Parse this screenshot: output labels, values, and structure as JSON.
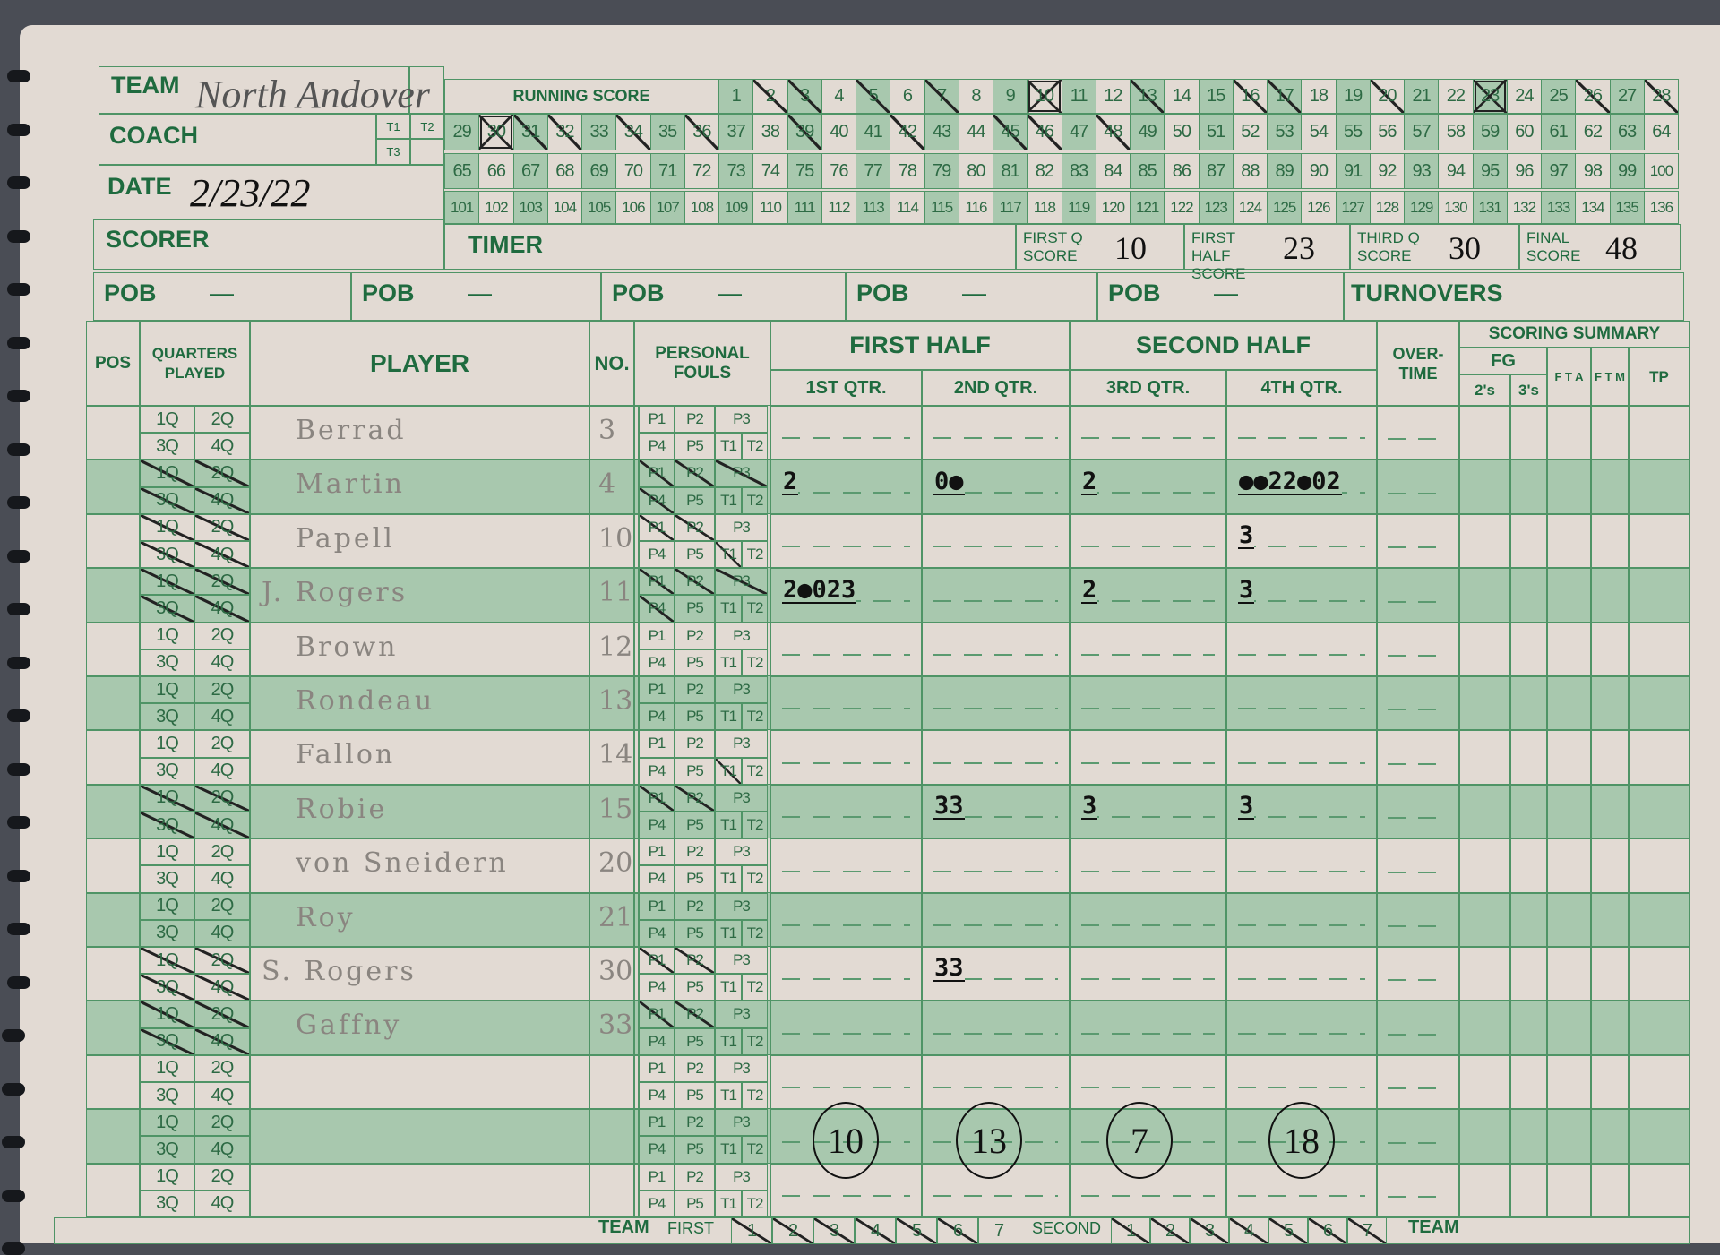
{
  "header": {
    "team_label": "TEAM",
    "team_value": "North Andover",
    "coach_label": "COACH",
    "t1": "T1",
    "t2": "T2",
    "t3": "T3",
    "date_label": "DATE",
    "date_value": "2/23/22",
    "scorer_label": "SCORER",
    "timer_label": "TIMER",
    "running_score_label": "RUNNING SCORE",
    "first_q_label": "FIRST Q SCORE",
    "first_q_value": "10",
    "first_half_label": "FIRST HALF SCORE",
    "first_half_value": "23",
    "third_q_label": "THIRD Q SCORE",
    "third_q_value": "30",
    "final_label": "FINAL SCORE",
    "final_value": "48"
  },
  "running_score": {
    "max": 136,
    "crossed": [
      2,
      3,
      5,
      7,
      13,
      16,
      17,
      20,
      26,
      28,
      31,
      32,
      34,
      36,
      39,
      42,
      45,
      46,
      48
    ],
    "boxed": [
      10,
      23,
      30
    ]
  },
  "pob": {
    "label": "POB",
    "dash": "—",
    "count": 5,
    "turnovers_label": "TURNOVERS"
  },
  "columns": {
    "pos": "POS",
    "quarters": "QUARTERS PLAYED",
    "player": "PLAYER",
    "no": "NO.",
    "fouls": "PERSONAL FOULS",
    "first_half": "FIRST HALF",
    "q1": "1ST QTR.",
    "q2": "2ND QTR.",
    "second_half": "SECOND HALF",
    "q3": "3RD QTR.",
    "q4": "4TH QTR.",
    "ot": "OVER-TIME",
    "summary": "SCORING SUMMARY",
    "fg": "FG",
    "twos": "2's",
    "threes": "3's",
    "fta": "F T A",
    "ftm": "F T M",
    "tp": "TP"
  },
  "quarter_labels": [
    "1Q",
    "2Q",
    "3Q",
    "4Q"
  ],
  "foul_labels": [
    "P1",
    "P2",
    "P3",
    "P4",
    "P5",
    "T1",
    "T2"
  ],
  "players": [
    {
      "name": "Berrad",
      "no": "3",
      "played": false,
      "fouls": [],
      "q": [
        "",
        "",
        "",
        ""
      ]
    },
    {
      "name": "Martin",
      "no": "4",
      "played": true,
      "fouls": [
        "P1",
        "P2",
        "P3",
        "P4"
      ],
      "q": [
        "2",
        "0●",
        "2",
        "●●22●02"
      ]
    },
    {
      "name": "Papell",
      "no": "10",
      "played": true,
      "fouls": [
        "P1",
        "P2",
        "T1"
      ],
      "q": [
        "",
        "",
        "",
        "3"
      ]
    },
    {
      "name": "J. Rogers",
      "no": "11",
      "played": true,
      "fouls": [
        "P1",
        "P2",
        "P3",
        "P4"
      ],
      "q": [
        "2●023",
        "",
        "2",
        "3"
      ]
    },
    {
      "name": "Brown",
      "no": "12",
      "played": false,
      "fouls": [],
      "q": [
        "",
        "",
        "",
        ""
      ]
    },
    {
      "name": "Rondeau",
      "no": "13",
      "played": false,
      "fouls": [],
      "q": [
        "",
        "",
        "",
        ""
      ]
    },
    {
      "name": "Fallon",
      "no": "14",
      "played": false,
      "fouls": [
        "T1"
      ],
      "q": [
        "",
        "",
        "",
        ""
      ]
    },
    {
      "name": "Robie",
      "no": "15",
      "played": true,
      "fouls": [
        "P1",
        "P2"
      ],
      "q": [
        "",
        "33",
        "3",
        "3"
      ]
    },
    {
      "name": "von Sneidern",
      "no": "20",
      "played": false,
      "fouls": [],
      "q": [
        "",
        "",
        "",
        ""
      ]
    },
    {
      "name": "Roy",
      "no": "21",
      "played": false,
      "fouls": [],
      "q": [
        "",
        "",
        "",
        ""
      ]
    },
    {
      "name": "S. Rogers",
      "no": "30",
      "played": true,
      "fouls": [
        "P1",
        "P2"
      ],
      "q": [
        "",
        "33",
        "",
        ""
      ]
    },
    {
      "name": "Gaffny",
      "no": "33",
      "played": true,
      "fouls": [
        "P1",
        "P2"
      ],
      "q": [
        "",
        "",
        "",
        ""
      ]
    },
    {
      "name": "",
      "no": "",
      "played": false,
      "fouls": [],
      "q": [
        "",
        "",
        "",
        ""
      ]
    },
    {
      "name": "",
      "no": "",
      "played": false,
      "fouls": [],
      "q": [
        "",
        "",
        "",
        ""
      ]
    },
    {
      "name": "",
      "no": "",
      "played": false,
      "fouls": [],
      "q": [
        "",
        "",
        "",
        ""
      ]
    }
  ],
  "quarter_totals": [
    "10",
    "13",
    "7",
    "18"
  ],
  "team_fouls": {
    "team_label": "TEAM",
    "first_label": "FIRST",
    "second_label": "SECOND",
    "end_label": "TEAM",
    "numbers": [
      "1",
      "2",
      "3",
      "4",
      "5",
      "6",
      "7"
    ],
    "first_crossed": [
      "1",
      "2",
      "3",
      "4",
      "5",
      "6"
    ],
    "second_crossed": [
      "1",
      "2",
      "3",
      "4",
      "5",
      "6",
      "7"
    ]
  },
  "colors": {
    "ink": "#1f6b3f",
    "shade": "#a8c8ae",
    "paper": "#e2dad3"
  }
}
